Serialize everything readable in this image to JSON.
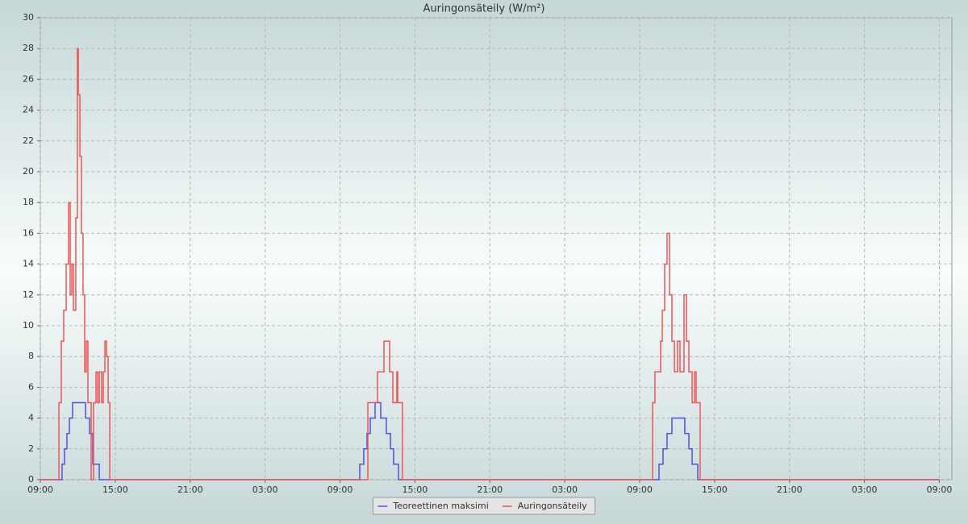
{
  "chart_data": {
    "type": "step-line",
    "title": "Auringonsäteily (W/m²)",
    "xlim": [
      0,
      73
    ],
    "ylim": [
      0,
      30
    ],
    "xticks": [
      {
        "value": 0,
        "label": "09:00"
      },
      {
        "value": 6,
        "label": "15:00"
      },
      {
        "value": 12,
        "label": "21:00"
      },
      {
        "value": 18,
        "label": "03:00"
      },
      {
        "value": 24,
        "label": "09:00"
      },
      {
        "value": 30,
        "label": "15:00"
      },
      {
        "value": 36,
        "label": "21:00"
      },
      {
        "value": 42,
        "label": "03:00"
      },
      {
        "value": 48,
        "label": "09:00"
      },
      {
        "value": 54,
        "label": "15:00"
      },
      {
        "value": 60,
        "label": "21:00"
      },
      {
        "value": 66,
        "label": "03:00"
      },
      {
        "value": 72,
        "label": "09:00"
      }
    ],
    "yticks": [
      0,
      2,
      4,
      6,
      8,
      10,
      12,
      14,
      16,
      18,
      20,
      22,
      24,
      26,
      28,
      30
    ],
    "grid": true,
    "legend": "bottom",
    "series": [
      {
        "name": "Teoreettinen maksimi",
        "color": "#5050e8",
        "x": [
          0,
          1.74,
          1.94,
          2.13,
          2.33,
          2.58,
          3.62,
          3.94,
          4.2,
          4.72,
          25.58,
          25.9,
          26.16,
          26.42,
          26.81,
          27.26,
          27.71,
          28.04,
          28.29,
          28.68,
          49.55,
          49.87,
          50.19,
          50.58,
          51.61,
          51.94,
          52.2,
          52.65,
          72
        ],
        "values": [
          0,
          1,
          2,
          3,
          4,
          5,
          4,
          3,
          1,
          0,
          1,
          2,
          3,
          4,
          5,
          4,
          3,
          2,
          1,
          0,
          1,
          2,
          3,
          4,
          3,
          2,
          1,
          0,
          0
        ]
      },
      {
        "name": "Auringonsäteily",
        "color": "#f05555",
        "x": [
          0,
          1.49,
          1.68,
          1.87,
          2.07,
          2.26,
          2.39,
          2.52,
          2.65,
          2.84,
          2.97,
          3.04,
          3.17,
          3.29,
          3.42,
          3.55,
          3.68,
          3.81,
          4.07,
          4.26,
          4.46,
          4.59,
          4.72,
          4.91,
          5.04,
          5.17,
          5.3,
          5.43,
          5.56,
          26.23,
          27.0,
          27.52,
          27.97,
          28.23,
          28.55,
          28.62,
          29.0,
          49.03,
          49.22,
          49.68,
          49.81,
          50.0,
          50.19,
          50.39,
          50.58,
          50.78,
          51.03,
          51.23,
          51.55,
          51.74,
          51.94,
          52.2,
          52.39,
          52.52,
          52.84,
          72
        ],
        "values": [
          0,
          5,
          9,
          11,
          14,
          18,
          12,
          14,
          11,
          17,
          28,
          25,
          21,
          16,
          12,
          7,
          9,
          5,
          0,
          5,
          7,
          5,
          7,
          5,
          7,
          9,
          8,
          5,
          0,
          5,
          7,
          9,
          7,
          5,
          7,
          5,
          0,
          5,
          7,
          9,
          11,
          14,
          16,
          12,
          9,
          7,
          9,
          7,
          12,
          9,
          7,
          5,
          7,
          5,
          0,
          0
        ]
      }
    ]
  }
}
